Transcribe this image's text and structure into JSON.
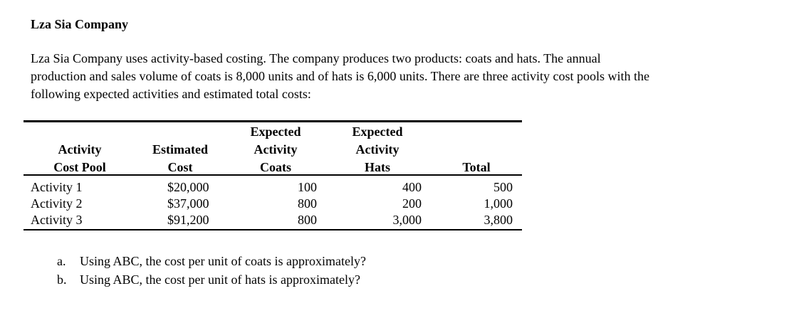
{
  "header": {
    "title": "Lza Sia Company"
  },
  "intro": [
    "Lza Sia Company uses activity-based costing.  The company produces two products:  coats and hats.  The annual",
    "production and sales volume of coats is 8,000 units and of hats is 6,000 units.  There are three activity cost pools with the",
    "following expected activities and estimated total costs:"
  ],
  "table": {
    "headers": [
      [
        "Activity",
        "Cost Pool"
      ],
      [
        "Estimated",
        "Cost"
      ],
      [
        "Expected",
        "Activity",
        "Coats"
      ],
      [
        "Expected",
        "Activity",
        "Hats"
      ],
      [
        "Total"
      ]
    ],
    "rows": [
      [
        "Activity 1",
        "$20,000",
        "100",
        "400",
        "500"
      ],
      [
        "Activity 2",
        "$37,000",
        "800",
        "200",
        "1,000"
      ],
      [
        "Activity 3",
        "$91,200",
        "800",
        "3,000",
        "3,800"
      ]
    ]
  },
  "questions": [
    {
      "marker": "a.",
      "text": "Using ABC, the cost per unit of coats is approximately?"
    },
    {
      "marker": "b.",
      "text": "Using ABC, the cost per unit of hats is approximately?"
    }
  ]
}
